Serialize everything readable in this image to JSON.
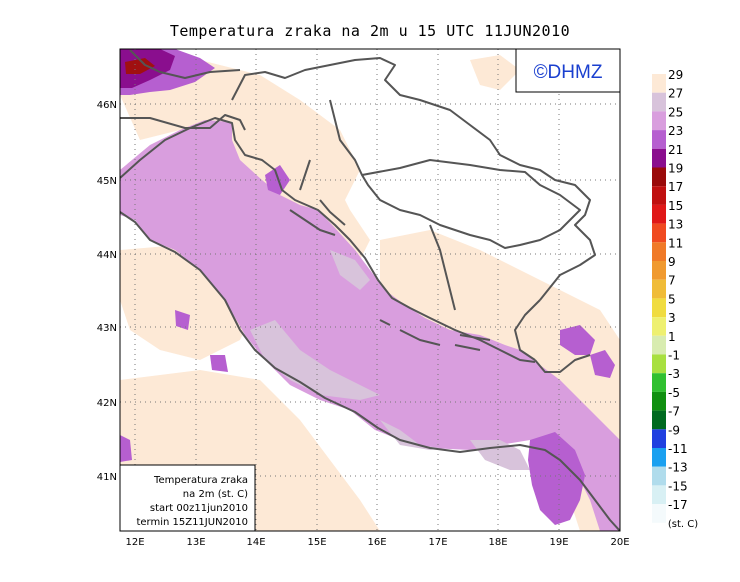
{
  "title": "Temperatura zraka na 2m u 15 UTC 11JUN2010",
  "copyright": "©DHMZ",
  "info_box": {
    "line1": "Temperatura zraka",
    "line2": "na 2m (st. C)",
    "line3": "start 00z11jun2010",
    "line4": "termin 15Z11JUN2010"
  },
  "lat_labels": [
    "46N",
    "45N",
    "44N",
    "43N",
    "42N",
    "41N"
  ],
  "lon_labels": [
    "12E",
    "13E",
    "14E",
    "15E",
    "16E",
    "17E",
    "18E",
    "19E",
    "20E"
  ],
  "colorbar": {
    "unit": "(st. C)",
    "levels": [
      "29",
      "27",
      "25",
      "23",
      "21",
      "19",
      "17",
      "15",
      "13",
      "11",
      "9",
      "7",
      "5",
      "3",
      "1",
      "-1",
      "-3",
      "-5",
      "-7",
      "-9",
      "-11",
      "-13",
      "-15",
      "-17"
    ],
    "colors": [
      "#fde9d6",
      "#d8c3db",
      "#d99ede",
      "#b65fd0",
      "#8a0e8e",
      "#9a0a0a",
      "#c01010",
      "#e01818",
      "#f04a20",
      "#f07a28",
      "#f09a30",
      "#f0bc38",
      "#f0dc40",
      "#eef070",
      "#d8ecb0",
      "#a8e040",
      "#30c030",
      "#109010",
      "#006a20",
      "#2040e0",
      "#1aa0f0",
      "#b0dcec",
      "#d8f0f4",
      "#f4fafc"
    ]
  },
  "map_colors": {
    "sea": "#d99ede",
    "sea_warm": "#d8c3db",
    "land_light": "#fde9d6",
    "hot_core": "#8a0e8e",
    "hot_red": "#a01010",
    "coast": "#555555"
  }
}
